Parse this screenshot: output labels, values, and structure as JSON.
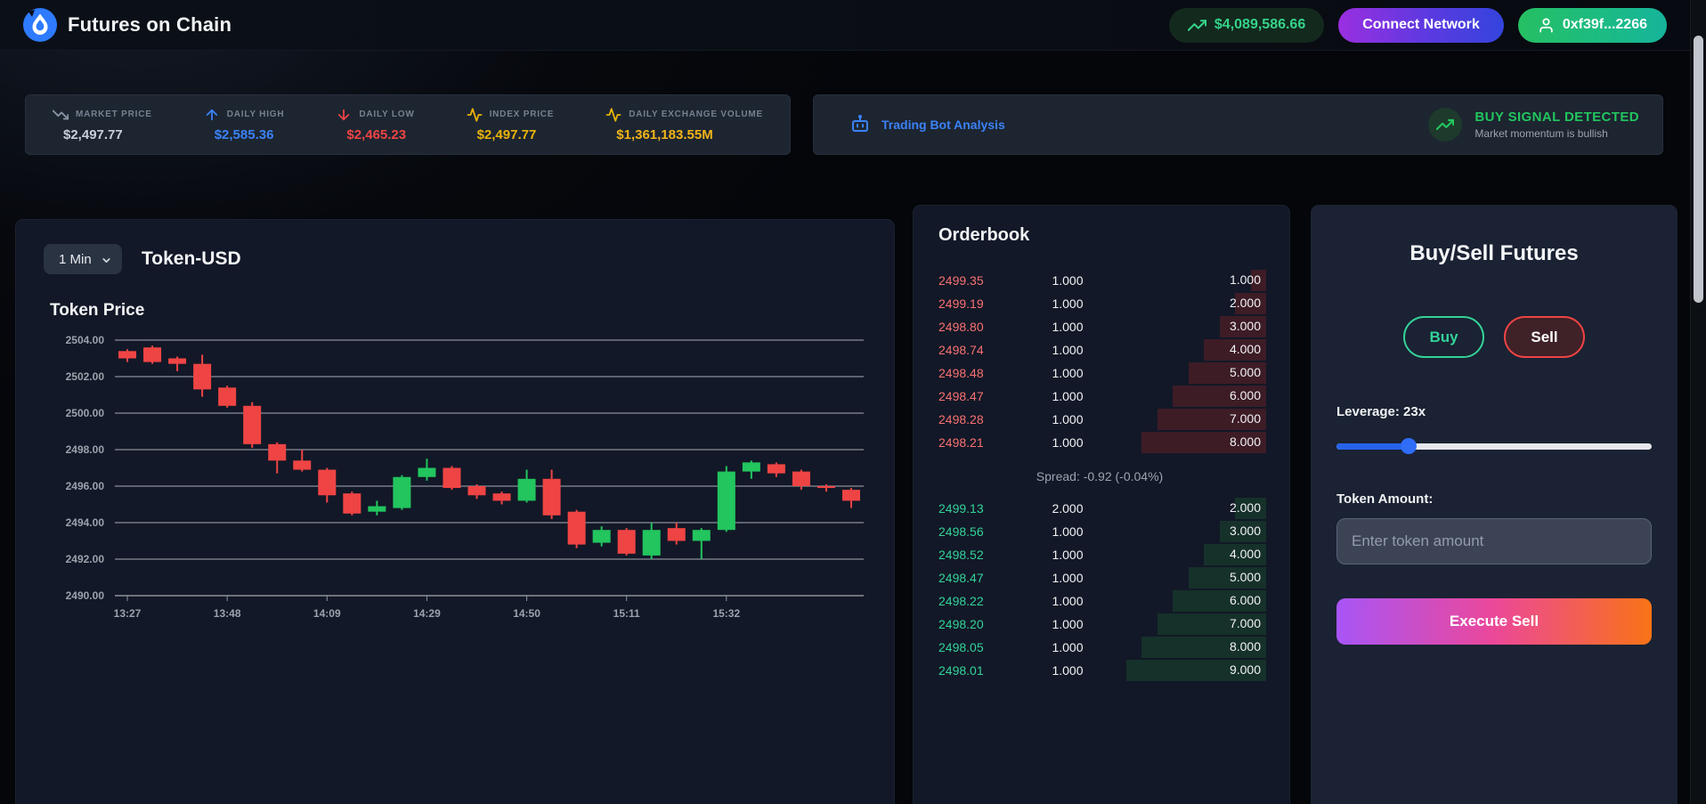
{
  "header": {
    "app_title": "Futures on Chain",
    "balance": "$4,089,586.66",
    "connect_button": "Connect Network",
    "wallet_button": "0xf39f...2266"
  },
  "stats": [
    {
      "label": "MARKET PRICE",
      "value": "$2,497.77",
      "icon": "trending-down-icon",
      "color": "#c9cfd8",
      "icon_color": "#8b95a5"
    },
    {
      "label": "DAILY HIGH",
      "value": "$2,585.36",
      "icon": "arrow-up-icon",
      "color": "#3b82f6",
      "icon_color": "#3b82f6"
    },
    {
      "label": "DAILY LOW",
      "value": "$2,465.23",
      "icon": "arrow-down-icon",
      "color": "#ef4444",
      "icon_color": "#ef4444"
    },
    {
      "label": "INDEX PRICE",
      "value": "$2,497.77",
      "icon": "activity-icon",
      "color": "#eab308",
      "icon_color": "#eab308"
    },
    {
      "label": "DAILY EXCHANGE VOLUME",
      "value": "$1,361,183.55M",
      "icon": "activity-icon",
      "color": "#f2b418",
      "icon_color": "#eab308"
    }
  ],
  "bot_panel": {
    "title": "Trading Bot Analysis",
    "signal": "BUY SIGNAL DETECTED",
    "signal_detail": "Market momentum is bullish",
    "signal_color": "#22c55e"
  },
  "chart_panel": {
    "interval": "1 Min",
    "pair_title": "Token-USD",
    "chart_title": "Token Price"
  },
  "chart_data": {
    "type": "candlestick",
    "title": "Token Price",
    "xlabel": "",
    "ylabel": "",
    "grid": true,
    "legend": false,
    "x_labels": [
      "13:27",
      "13:48",
      "14:09",
      "14:29",
      "14:50",
      "15:11",
      "15:32"
    ],
    "x_label_every_n_candles": 4,
    "y_ticks": [
      2504,
      2502,
      2500,
      2498,
      2496,
      2494,
      2492,
      2490
    ],
    "ylim": [
      2490,
      2504
    ],
    "up_color": "#22c55e",
    "down_color": "#ef4444",
    "candles": [
      {
        "o": 2503.4,
        "h": 2503.5,
        "l": 2502.8,
        "c": 2503.0
      },
      {
        "o": 2503.6,
        "h": 2503.7,
        "l": 2502.7,
        "c": 2502.8
      },
      {
        "o": 2503.0,
        "h": 2503.1,
        "l": 2502.3,
        "c": 2502.7
      },
      {
        "o": 2502.7,
        "h": 2503.2,
        "l": 2500.9,
        "c": 2501.3
      },
      {
        "o": 2501.4,
        "h": 2501.5,
        "l": 2500.3,
        "c": 2500.4
      },
      {
        "o": 2500.4,
        "h": 2500.6,
        "l": 2498.1,
        "c": 2498.3
      },
      {
        "o": 2498.3,
        "h": 2498.4,
        "l": 2496.7,
        "c": 2497.4
      },
      {
        "o": 2497.4,
        "h": 2498.0,
        "l": 2496.8,
        "c": 2496.9
      },
      {
        "o": 2496.9,
        "h": 2497.0,
        "l": 2495.1,
        "c": 2495.5
      },
      {
        "o": 2495.6,
        "h": 2495.7,
        "l": 2494.4,
        "c": 2494.5
      },
      {
        "o": 2494.6,
        "h": 2495.2,
        "l": 2494.4,
        "c": 2494.9
      },
      {
        "o": 2494.8,
        "h": 2496.6,
        "l": 2494.7,
        "c": 2496.5
      },
      {
        "o": 2496.5,
        "h": 2497.5,
        "l": 2496.3,
        "c": 2497.0
      },
      {
        "o": 2497.0,
        "h": 2497.1,
        "l": 2495.8,
        "c": 2495.9
      },
      {
        "o": 2496.0,
        "h": 2496.1,
        "l": 2495.3,
        "c": 2495.5
      },
      {
        "o": 2495.6,
        "h": 2495.7,
        "l": 2495.0,
        "c": 2495.2
      },
      {
        "o": 2495.2,
        "h": 2496.9,
        "l": 2495.1,
        "c": 2496.4
      },
      {
        "o": 2496.4,
        "h": 2496.9,
        "l": 2494.2,
        "c": 2494.4
      },
      {
        "o": 2494.6,
        "h": 2494.7,
        "l": 2492.6,
        "c": 2492.8
      },
      {
        "o": 2492.9,
        "h": 2493.8,
        "l": 2492.7,
        "c": 2493.6
      },
      {
        "o": 2493.6,
        "h": 2493.7,
        "l": 2492.2,
        "c": 2492.3
      },
      {
        "o": 2492.2,
        "h": 2494.0,
        "l": 2492.0,
        "c": 2493.6
      },
      {
        "o": 2493.7,
        "h": 2494.0,
        "l": 2492.8,
        "c": 2493.0
      },
      {
        "o": 2493.0,
        "h": 2493.7,
        "l": 2492.0,
        "c": 2493.6
      },
      {
        "o": 2493.6,
        "h": 2497.1,
        "l": 2493.5,
        "c": 2496.8
      },
      {
        "o": 2496.8,
        "h": 2497.4,
        "l": 2496.4,
        "c": 2497.3
      },
      {
        "o": 2497.2,
        "h": 2497.3,
        "l": 2496.5,
        "c": 2496.7
      },
      {
        "o": 2496.8,
        "h": 2496.9,
        "l": 2495.8,
        "c": 2496.0
      },
      {
        "o": 2496.0,
        "h": 2496.1,
        "l": 2495.7,
        "c": 2495.9
      },
      {
        "o": 2495.8,
        "h": 2495.9,
        "l": 2494.8,
        "c": 2495.2
      }
    ]
  },
  "orderbook": {
    "title": "Orderbook",
    "spread_label": "Spread: -0.92 (-0.04%)",
    "asks": [
      {
        "price": "2499.35",
        "amount": 1,
        "total": 1
      },
      {
        "price": "2499.19",
        "amount": 1,
        "total": 2
      },
      {
        "price": "2498.80",
        "amount": 1,
        "total": 3
      },
      {
        "price": "2498.74",
        "amount": 1,
        "total": 4
      },
      {
        "price": "2498.48",
        "amount": 1,
        "total": 5
      },
      {
        "price": "2498.47",
        "amount": 1,
        "total": 6
      },
      {
        "price": "2498.28",
        "amount": 1,
        "total": 7
      },
      {
        "price": "2498.21",
        "amount": 1,
        "total": 8
      }
    ],
    "bids": [
      {
        "price": "2499.13",
        "amount": 2,
        "total": 2
      },
      {
        "price": "2498.56",
        "amount": 1,
        "total": 3
      },
      {
        "price": "2498.52",
        "amount": 1,
        "total": 4
      },
      {
        "price": "2498.47",
        "amount": 1,
        "total": 5
      },
      {
        "price": "2498.22",
        "amount": 1,
        "total": 6
      },
      {
        "price": "2498.20",
        "amount": 1,
        "total": 7
      },
      {
        "price": "2498.05",
        "amount": 1,
        "total": 8
      },
      {
        "price": "2498.01",
        "amount": 1,
        "total": 9
      }
    ]
  },
  "trade_panel": {
    "title": "Buy/Sell Futures",
    "buy_label": "Buy",
    "sell_label": "Sell",
    "leverage_label": "Leverage: 23x",
    "leverage_percent": 23,
    "amount_label": "Token Amount:",
    "amount_placeholder": "Enter token amount",
    "execute_label": "Execute Sell"
  }
}
